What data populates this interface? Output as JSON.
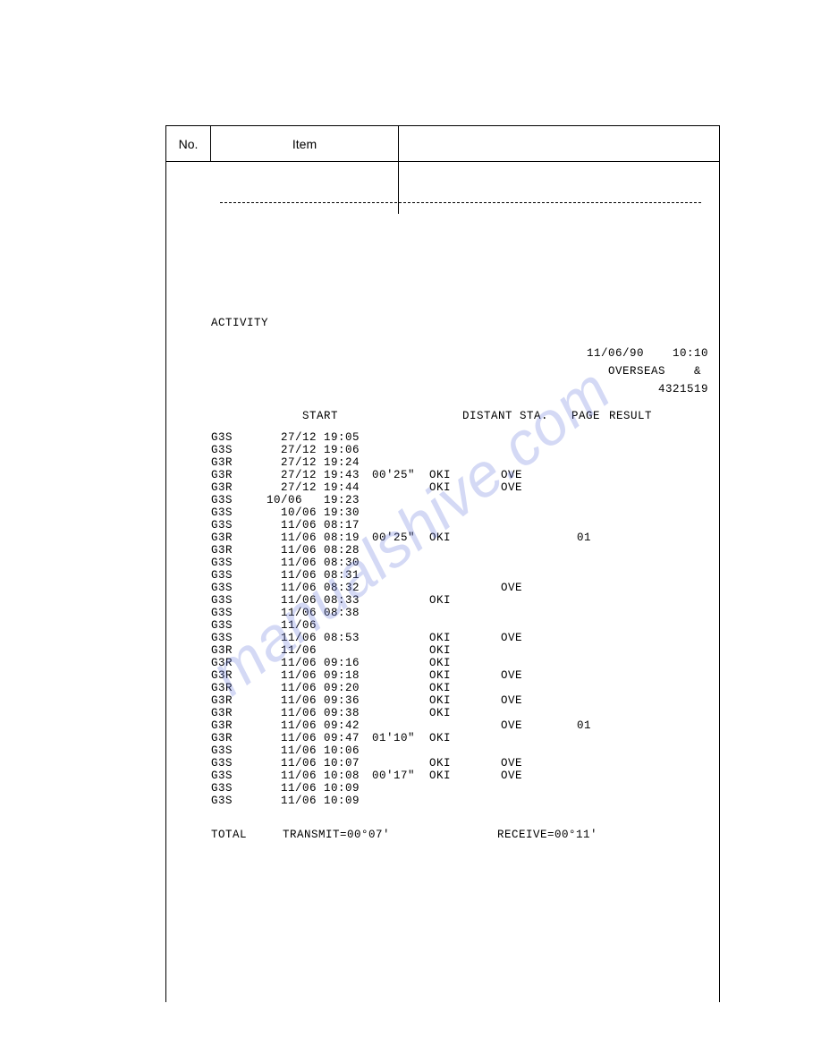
{
  "colors": {
    "background": "#ffffff",
    "border": "#000000",
    "text": "#000000",
    "watermark": "rgba(100,120,220,0.28)"
  },
  "typography": {
    "mono_family": "Courier New",
    "sans_family": "Arial",
    "header_fontsize": 14,
    "body_fontsize": 12.5,
    "watermark_fontsize": 68
  },
  "frame": {
    "header_no": "No.",
    "header_item": "Item"
  },
  "watermark": {
    "text": "manualshive.com"
  },
  "report": {
    "title": "ACTIVITY",
    "date": "11/06/90",
    "time": "10:10",
    "dept": "OVERSEAS",
    "dept_suffix": "&",
    "id": "4321519",
    "col_headers": {
      "start": "START",
      "distant": "DISTANT STA.",
      "page": "PAGE",
      "result": "RESULT"
    },
    "rows": [
      {
        "mode": "G3S",
        "start": "  27/12 19:05",
        "dur": "",
        "distant": "",
        "ove": "",
        "page": "",
        "result": ""
      },
      {
        "mode": "G3S",
        "start": "  27/12 19:06",
        "dur": "",
        "distant": "",
        "ove": "",
        "page": "",
        "result": ""
      },
      {
        "mode": "G3R",
        "start": "  27/12 19:24",
        "dur": "",
        "distant": "",
        "ove": "",
        "page": "",
        "result": ""
      },
      {
        "mode": "G3R",
        "start": "  27/12 19:43",
        "dur": "00'25\"",
        "distant": "OKI",
        "ove": "OVE",
        "page": "",
        "result": ""
      },
      {
        "mode": "G3R",
        "start": "  27/12 19:44",
        "dur": "",
        "distant": "OKI",
        "ove": "OVE",
        "page": "",
        "result": ""
      },
      {
        "mode": "G3S",
        "start": "10/06   19:23",
        "dur": "",
        "distant": "",
        "ove": "",
        "page": "",
        "result": ""
      },
      {
        "mode": "G3S",
        "start": "  10/06 19:30",
        "dur": "",
        "distant": "",
        "ove": "",
        "page": "",
        "result": ""
      },
      {
        "mode": "G3S",
        "start": "  11/06 08:17",
        "dur": "",
        "distant": "",
        "ove": "",
        "page": "",
        "result": ""
      },
      {
        "mode": "G3R",
        "start": "  11/06 08:19",
        "dur": "00'25\"",
        "distant": "OKI",
        "ove": "",
        "page": "01",
        "result": ""
      },
      {
        "mode": "G3R",
        "start": "  11/06 08:28",
        "dur": "",
        "distant": "",
        "ove": "",
        "page": "",
        "result": ""
      },
      {
        "mode": "G3S",
        "start": "  11/06 08:30",
        "dur": "",
        "distant": "",
        "ove": "",
        "page": "",
        "result": ""
      },
      {
        "mode": "G3S",
        "start": "  11/06 08:31",
        "dur": "",
        "distant": "",
        "ove": "",
        "page": "",
        "result": ""
      },
      {
        "mode": "G3S",
        "start": "  11/06 08:32",
        "dur": "",
        "distant": "",
        "ove": "OVE",
        "page": "",
        "result": ""
      },
      {
        "mode": "G3S",
        "start": "  11/06 08:33",
        "dur": "",
        "distant": "OKI",
        "ove": "",
        "page": "",
        "result": ""
      },
      {
        "mode": "G3S",
        "start": "  11/06 08:38",
        "dur": "",
        "distant": "",
        "ove": "",
        "page": "",
        "result": ""
      },
      {
        "mode": "G3S",
        "start": "  11/06",
        "dur": "",
        "distant": "",
        "ove": "",
        "page": "",
        "result": ""
      },
      {
        "mode": "G3S",
        "start": "  11/06 08:53",
        "dur": "",
        "distant": "OKI",
        "ove": "OVE",
        "page": "",
        "result": ""
      },
      {
        "mode": "G3R",
        "start": "  11/06",
        "dur": "",
        "distant": "OKI",
        "ove": "",
        "page": "",
        "result": ""
      },
      {
        "mode": "G3R",
        "start": "  11/06 09:16",
        "dur": "",
        "distant": "OKI",
        "ove": "",
        "page": "",
        "result": ""
      },
      {
        "mode": "G3R",
        "start": "  11/06 09:18",
        "dur": "",
        "distant": "OKI",
        "ove": "OVE",
        "page": "",
        "result": ""
      },
      {
        "mode": "G3R",
        "start": "  11/06 09:20",
        "dur": "",
        "distant": "OKI",
        "ove": "",
        "page": "",
        "result": ""
      },
      {
        "mode": "G3R",
        "start": "  11/06 09:36",
        "dur": "",
        "distant": "OKI",
        "ove": "OVE",
        "page": "",
        "result": ""
      },
      {
        "mode": "G3R",
        "start": "  11/06 09:38",
        "dur": "",
        "distant": "OKI",
        "ove": "",
        "page": "",
        "result": ""
      },
      {
        "mode": "G3R",
        "start": "  11/06 09:42",
        "dur": "",
        "distant": "",
        "ove": "OVE",
        "page": "01",
        "result": ""
      },
      {
        "mode": "G3R",
        "start": "  11/06 09:47",
        "dur": "01'10\"",
        "distant": "OKI",
        "ove": "",
        "page": "",
        "result": ""
      },
      {
        "mode": "G3S",
        "start": "  11/06 10:06",
        "dur": "",
        "distant": "",
        "ove": "",
        "page": "",
        "result": ""
      },
      {
        "mode": "G3S",
        "start": "  11/06 10:07",
        "dur": "",
        "distant": "OKI",
        "ove": "OVE",
        "page": "",
        "result": ""
      },
      {
        "mode": "G3S",
        "start": "  11/06 10:08",
        "dur": "00'17\"",
        "distant": "OKI",
        "ove": "OVE",
        "page": "",
        "result": ""
      },
      {
        "mode": "G3S",
        "start": "  11/06 10:09",
        "dur": "",
        "distant": "",
        "ove": "",
        "page": "",
        "result": ""
      },
      {
        "mode": "G3S",
        "start": "  11/06 10:09",
        "dur": "",
        "distant": "",
        "ove": "",
        "page": "",
        "result": ""
      }
    ],
    "totals": {
      "label": "TOTAL",
      "transmit_label": "TRANSMIT=",
      "transmit_value": "00°07'",
      "receive_label": "RECEIVE=",
      "receive_value": "00°11'"
    }
  }
}
